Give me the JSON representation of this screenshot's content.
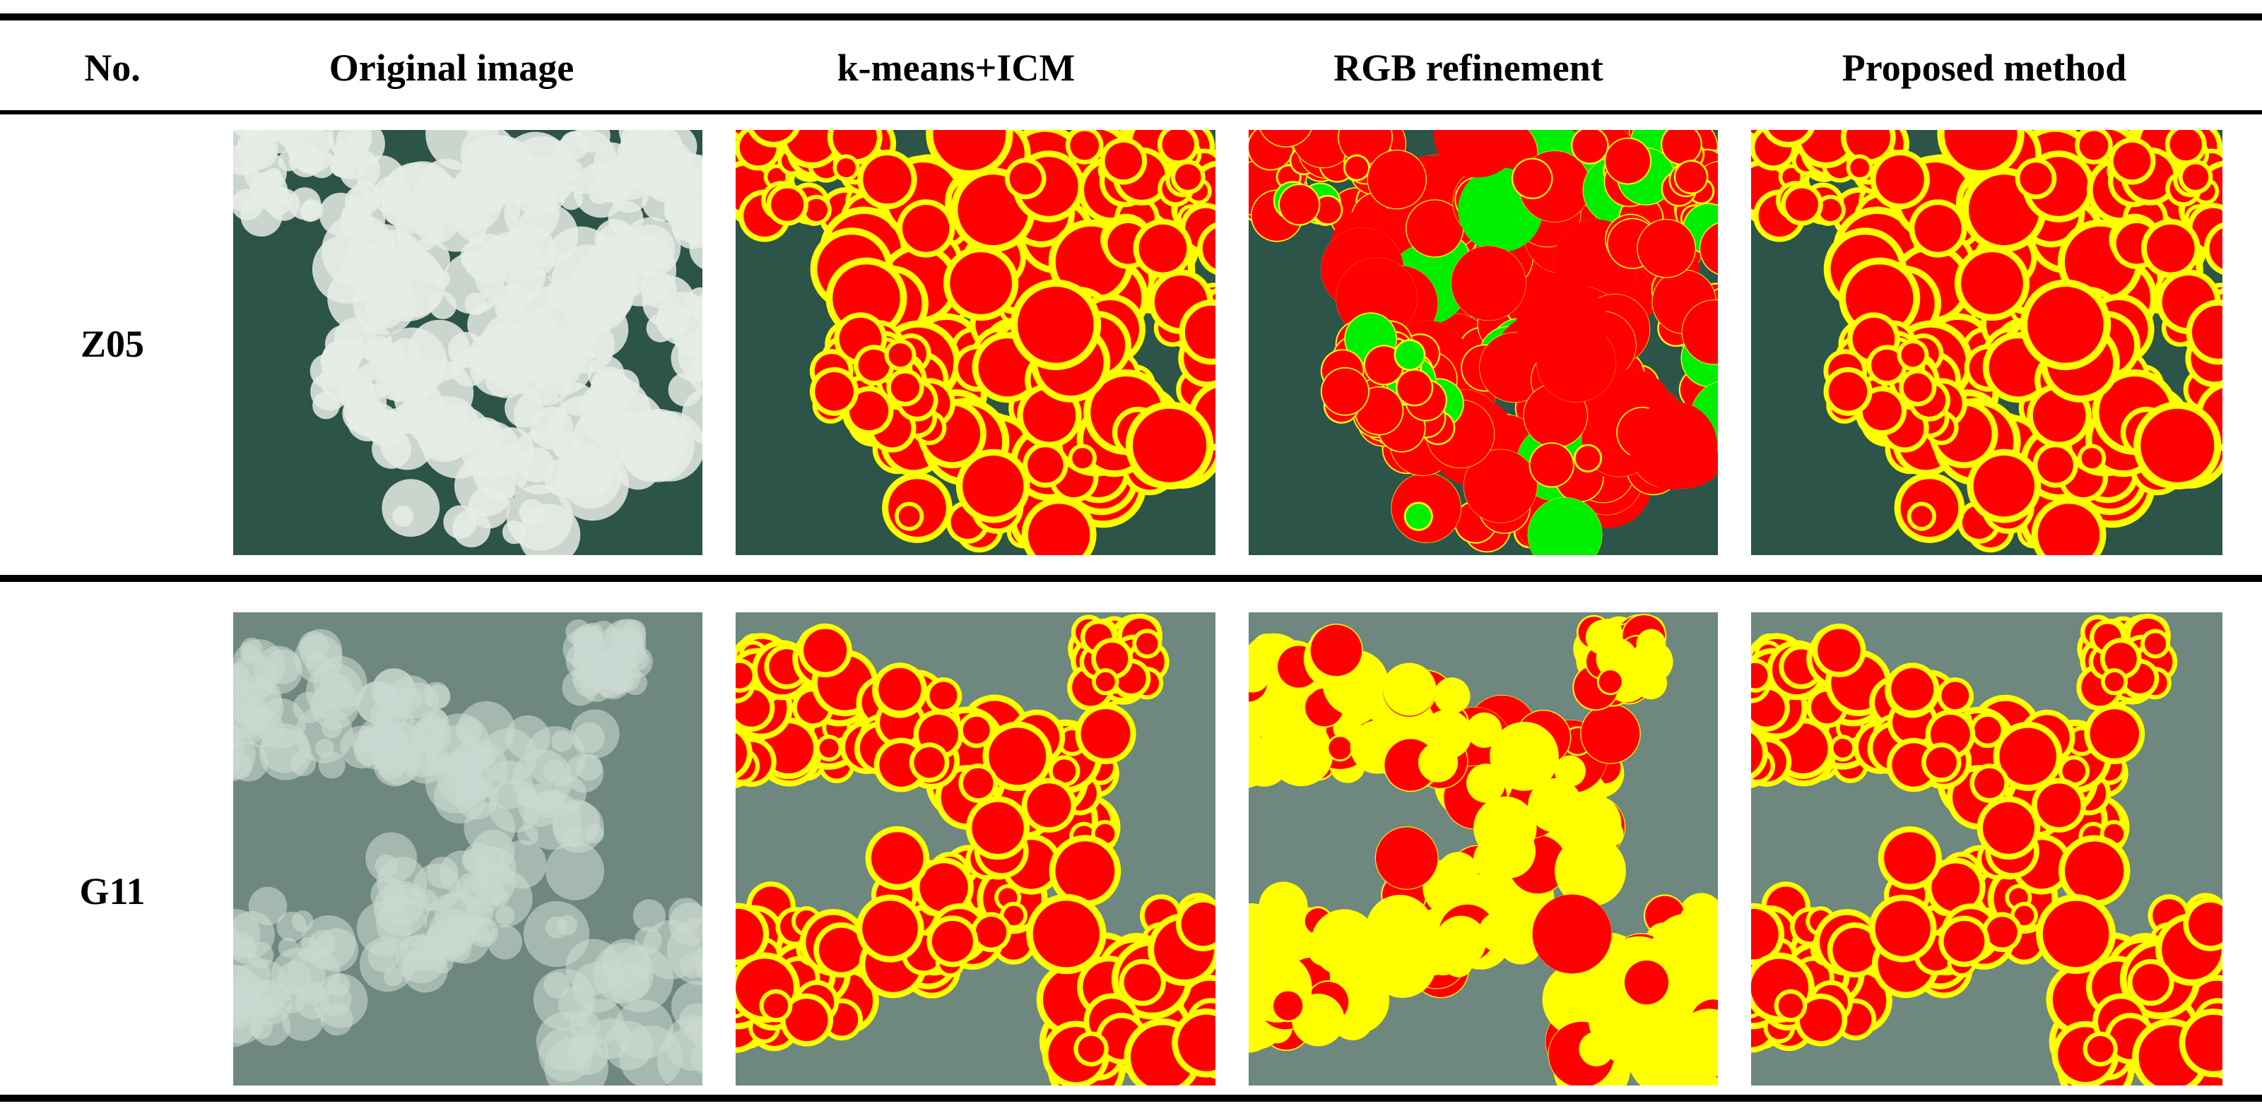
{
  "table": {
    "columns": [
      "No.",
      "Original image",
      "k-means+ICM",
      "RGB refinement",
      "Proposed method"
    ],
    "rows": [
      [
        "Z05"
      ],
      [
        "G11"
      ]
    ]
  }
}
